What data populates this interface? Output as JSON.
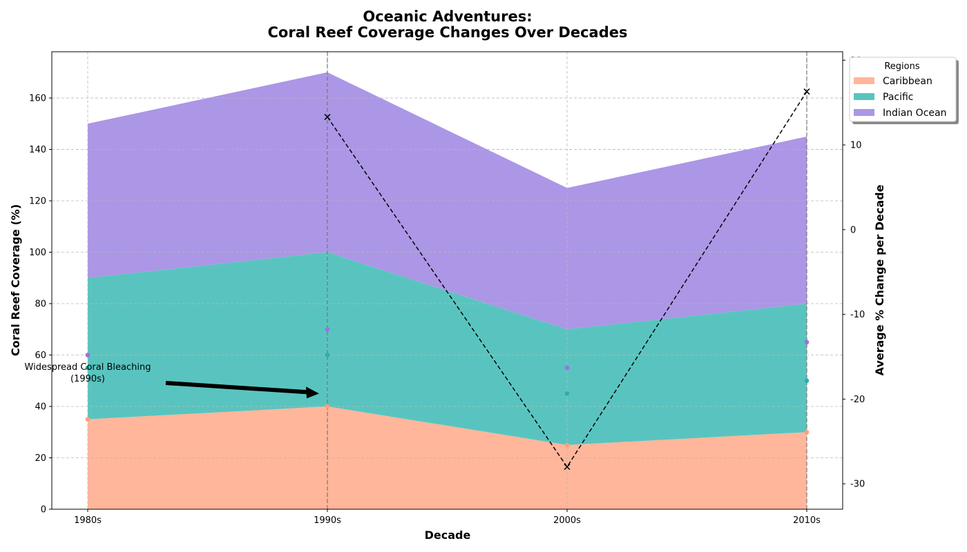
{
  "chart_data": {
    "type": "area",
    "title": [
      "Oceanic Adventures:",
      "Coral Reef Coverage Changes Over Decades"
    ],
    "xlabel": "Decade",
    "ylabel": "Coral Reef Coverage (%)",
    "ylabel_right": "Average % Change per Decade",
    "categories": [
      "1980s",
      "1990s",
      "2000s",
      "2010s"
    ],
    "ylim": [
      0,
      178
    ],
    "ylim_right": [
      -33,
      21
    ],
    "yticks": [
      0,
      20,
      40,
      60,
      80,
      100,
      120,
      140,
      160
    ],
    "yticks_right": [
      -30,
      -20,
      -10,
      0,
      10,
      20
    ],
    "stacked": true,
    "grid": true,
    "series": [
      {
        "name": "Caribbean",
        "values": [
          35,
          40,
          25,
          30
        ],
        "color": "#FFB69B"
      },
      {
        "name": "Pacific",
        "values": [
          55,
          60,
          45,
          50
        ],
        "color": "#59C4BF"
      },
      {
        "name": "Indian Ocean",
        "values": [
          60,
          70,
          55,
          65
        ],
        "color": "#AC96E6"
      }
    ],
    "marker_colors": {
      "Caribbean": "#FF9F7A",
      "Pacific": "#2AB0A8",
      "Indian Ocean": "#9B72E0"
    },
    "secondary_line": {
      "x": [
        "1990s",
        "2000s",
        "2010s"
      ],
      "values": [
        13.3,
        -28.0,
        16.3
      ],
      "style": "dashed",
      "marker": "x",
      "color": "#000000"
    },
    "legend": {
      "title": "Regions",
      "position": "upper-right"
    },
    "annotation": {
      "text": [
        "Widespread Coral Bleaching",
        "(1990s)"
      ],
      "target_x": "1990s",
      "target_y": 45
    },
    "vlines": [
      "1990s",
      "2010s"
    ]
  }
}
